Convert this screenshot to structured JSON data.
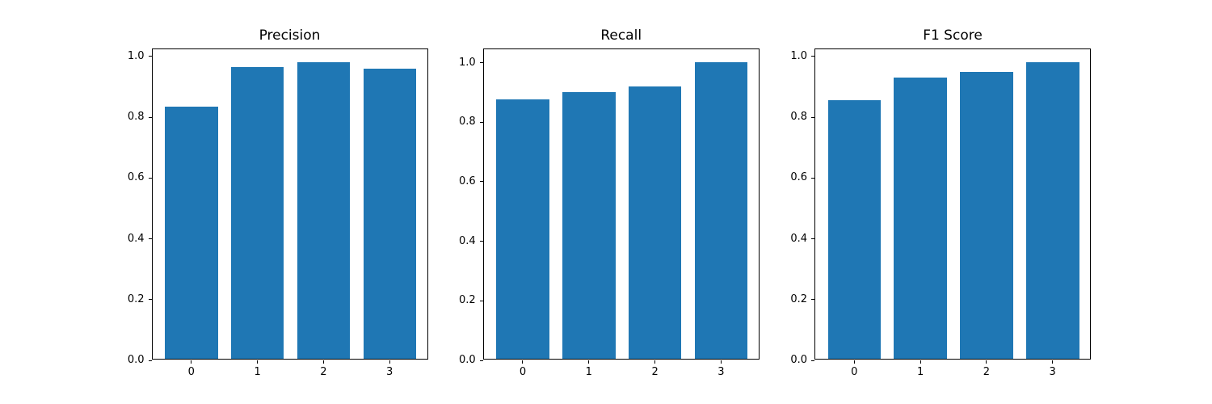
{
  "figure": {
    "background_color": "#ffffff",
    "bar_color": "#1f77b4",
    "spine_color": "#000000",
    "text_color": "#000000"
  },
  "chart_data": [
    {
      "type": "bar",
      "title": "Precision",
      "categories": [
        "0",
        "1",
        "2",
        "3"
      ],
      "values": [
        0.83,
        0.96,
        0.975,
        0.955
      ],
      "xlabel": "",
      "ylabel": "",
      "yticks": [
        0.0,
        0.2,
        0.4,
        0.6,
        0.8,
        1.0
      ],
      "yticklabels": [
        "0.0",
        "0.2",
        "0.4",
        "0.6",
        "0.8",
        "1.0"
      ],
      "ylim": [
        0,
        1.0238
      ],
      "xlim": [
        -0.59,
        3.59
      ],
      "bar_width": 0.8,
      "grid": false,
      "legend": null
    },
    {
      "type": "bar",
      "title": "Recall",
      "categories": [
        "0",
        "1",
        "2",
        "3"
      ],
      "values": [
        0.87,
        0.895,
        0.915,
        0.995
      ],
      "xlabel": "",
      "ylabel": "",
      "yticks": [
        0.0,
        0.2,
        0.4,
        0.6,
        0.8,
        1.0
      ],
      "yticklabels": [
        "0.0",
        "0.2",
        "0.4",
        "0.6",
        "0.8",
        "1.0"
      ],
      "ylim": [
        0,
        1.0448
      ],
      "xlim": [
        -0.59,
        3.59
      ],
      "bar_width": 0.8,
      "grid": false,
      "legend": null
    },
    {
      "type": "bar",
      "title": "F1 Score",
      "categories": [
        "0",
        "1",
        "2",
        "3"
      ],
      "values": [
        0.85,
        0.925,
        0.945,
        0.975
      ],
      "xlabel": "",
      "ylabel": "",
      "yticks": [
        0.0,
        0.2,
        0.4,
        0.6,
        0.8,
        1.0
      ],
      "yticklabels": [
        "0.0",
        "0.2",
        "0.4",
        "0.6",
        "0.8",
        "1.0"
      ],
      "ylim": [
        0,
        1.0238
      ],
      "xlim": [
        -0.59,
        3.59
      ],
      "bar_width": 0.8,
      "grid": false,
      "legend": null
    }
  ]
}
